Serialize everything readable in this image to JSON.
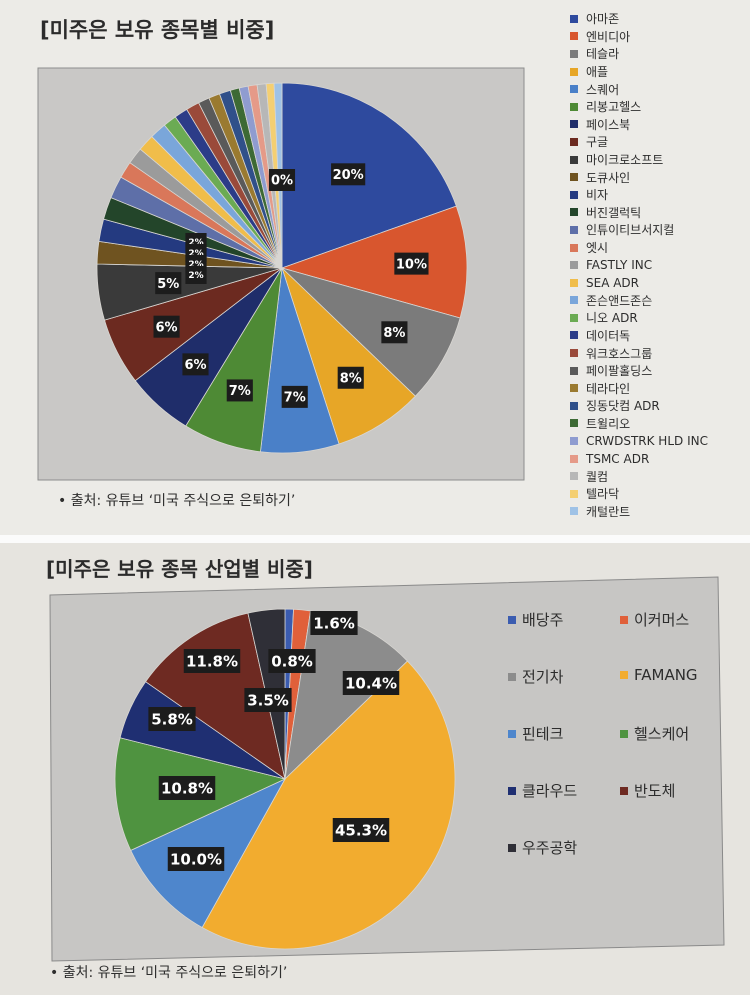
{
  "chart1": {
    "title": "[미주은 보유 종목별 비중]",
    "source": "• 출처: 유튜브 ‘미국 주식으로 은퇴하기’",
    "chart_data": {
      "type": "pie",
      "title": "[미주은 보유 종목별 비중]",
      "legend_position": "right",
      "slices": [
        {
          "label": "아마존",
          "value": 20,
          "color": "#2e4a9e",
          "data_label": "20%"
        },
        {
          "label": "엔비디아",
          "value": 10,
          "color": "#d8562e",
          "data_label": "10%"
        },
        {
          "label": "테슬라",
          "value": 8,
          "color": "#7b7b7b",
          "data_label": "8%"
        },
        {
          "label": "애플",
          "value": 8,
          "color": "#e7a627",
          "data_label": "8%"
        },
        {
          "label": "스퀘어",
          "value": 7,
          "color": "#4a80c8",
          "data_label": "7%"
        },
        {
          "label": "리봉고헬스",
          "value": 7,
          "color": "#4e8a35",
          "data_label": "7%"
        },
        {
          "label": "페이스북",
          "value": 6,
          "color": "#1f2d6a",
          "data_label": "6%"
        },
        {
          "label": "구글",
          "value": 6,
          "color": "#6c2a20",
          "data_label": "6%"
        },
        {
          "label": "마이크로소프트",
          "value": 5,
          "color": "#3a3a3a",
          "data_label": "5%"
        },
        {
          "label": "도큐사인",
          "value": 2,
          "color": "#6f5320",
          "data_label": "2%"
        },
        {
          "label": "비자",
          "value": 2,
          "color": "#243a80",
          "data_label": "2%"
        },
        {
          "label": "버진갤럭틱",
          "value": 2,
          "color": "#23452a",
          "data_label": "2%"
        },
        {
          "label": "인튜이티브서지컬",
          "value": 2,
          "color": "#5e6fa8",
          "data_label": "2%"
        },
        {
          "label": "엣시",
          "value": 1.5,
          "color": "#d9775a",
          "data_label": ""
        },
        {
          "label": "FASTLY INC",
          "value": 1.5,
          "color": "#9b9b9b",
          "data_label": ""
        },
        {
          "label": "SEA ADR",
          "value": 1.5,
          "color": "#f0bd4a",
          "data_label": ""
        },
        {
          "label": "존슨앤드존슨",
          "value": 1.5,
          "color": "#7aa6da",
          "data_label": ""
        },
        {
          "label": "니오 ADR",
          "value": 1.2,
          "color": "#6bab53",
          "data_label": ""
        },
        {
          "label": "데이터독",
          "value": 1.2,
          "color": "#2c3c88",
          "data_label": ""
        },
        {
          "label": "워크호스그룹",
          "value": 1.2,
          "color": "#9a4a3a",
          "data_label": ""
        },
        {
          "label": "페이팔홀딩스",
          "value": 1,
          "color": "#5a5a5a",
          "data_label": ""
        },
        {
          "label": "테라다인",
          "value": 1,
          "color": "#9a7a30",
          "data_label": ""
        },
        {
          "label": "징동닷컴 ADR",
          "value": 1,
          "color": "#30508a",
          "data_label": ""
        },
        {
          "label": "트윌리오",
          "value": 0.8,
          "color": "#3d6a35",
          "data_label": ""
        },
        {
          "label": "CRWDSTRK HLD INC",
          "value": 0.8,
          "color": "#8f9cd0",
          "data_label": ""
        },
        {
          "label": "TSMC ADR",
          "value": 0.8,
          "color": "#e59a88",
          "data_label": ""
        },
        {
          "label": "퀄컴",
          "value": 0.8,
          "color": "#b7b7b7",
          "data_label": ""
        },
        {
          "label": "텔라닥",
          "value": 0.7,
          "color": "#f4cf72",
          "data_label": ""
        },
        {
          "label": "캐털란트",
          "value": 0.7,
          "color": "#9fc2e6",
          "data_label": ""
        }
      ],
      "overlay_labels": [
        "0%",
        "2%",
        "2%",
        "2%",
        "2%"
      ]
    }
  },
  "chart2": {
    "title": "[미주은 보유 종목 산업별 비중]",
    "source": "• 출처: 유튜브 ‘미국 주식으로 은퇴하기’",
    "chart_data": {
      "type": "pie",
      "title": "[미주은 보유 종목 산업별 비중]",
      "legend_position": "right",
      "slices": [
        {
          "label": "배당주",
          "value": 0.8,
          "color": "#3b5cb0",
          "data_label": "0.8%"
        },
        {
          "label": "이커머스",
          "value": 1.6,
          "color": "#e0603a",
          "data_label": "1.6%"
        },
        {
          "label": "전기차",
          "value": 10.4,
          "color": "#8c8c8c",
          "data_label": "10.4%"
        },
        {
          "label": "FAMANG",
          "value": 45.3,
          "color": "#f2ac2f",
          "data_label": "45.3%"
        },
        {
          "label": "핀테크",
          "value": 10.0,
          "color": "#4e86cc",
          "data_label": "10.0%"
        },
        {
          "label": "헬스케어",
          "value": 10.8,
          "color": "#4f9340",
          "data_label": "10.8%"
        },
        {
          "label": "클라우드",
          "value": 5.8,
          "color": "#1f2f72",
          "data_label": "5.8%"
        },
        {
          "label": "반도체",
          "value": 11.8,
          "color": "#6e2a22",
          "data_label": "11.8%"
        },
        {
          "label": "우주공학",
          "value": 3.5,
          "color": "#2f2f37",
          "data_label": "3.5%"
        }
      ]
    }
  }
}
